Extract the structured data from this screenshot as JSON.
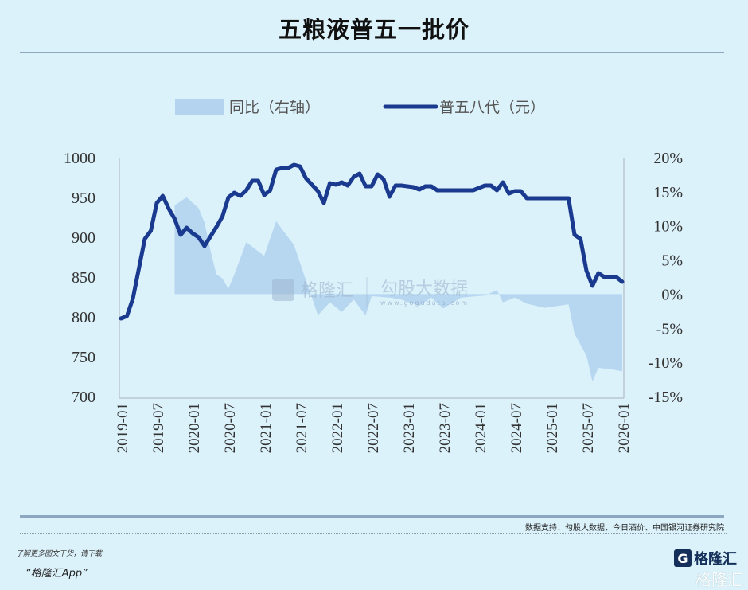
{
  "header": {
    "title": "五粮液普五一批价"
  },
  "footer": {
    "source": "数据支持：勾股大数据、今日酒价、中国银河证券研究院",
    "promo_line1": "了解更多图文干货，请下载",
    "promo_line2": "“格隆汇App”",
    "logo_text": "格隆汇",
    "logo_letter": "G"
  },
  "watermark": {
    "brand1": "格隆汇",
    "brand2": "勾股大数据",
    "url": "www.gogudata.com"
  },
  "colors": {
    "line": "#1a3a8f",
    "area": "#b3d3ee",
    "background": "#dcf2fb"
  },
  "chart_data": {
    "type": "line+area",
    "title": "五粮液普五一批价",
    "legend_position": "top",
    "grid": false,
    "x_ticks": [
      "2019-01",
      "2019-07",
      "2020-01",
      "2020-07",
      "2021-01",
      "2021-07",
      "2022-01",
      "2022-07",
      "2023-01",
      "2023-07",
      "2024-01",
      "2024-07",
      "2025-01",
      "2025-07",
      "2026-01"
    ],
    "y_left": {
      "range": [
        700,
        1000
      ],
      "ticks": [
        700,
        750,
        800,
        850,
        900,
        950,
        1000
      ]
    },
    "y_right": {
      "range": [
        -15,
        20
      ],
      "ticks": [
        "-15%",
        "-10%",
        "-5%",
        "0%",
        "5%",
        "10%",
        "15%",
        "20%"
      ],
      "tick_values": [
        -15,
        -10,
        -5,
        0,
        5,
        10,
        15,
        20
      ]
    },
    "series": [
      {
        "name": "同比（右轴）",
        "type": "area",
        "axis": "right",
        "unit": "%",
        "points": [
          [
            "2019-10",
            0
          ],
          [
            "2019-10",
            13
          ],
          [
            "2019-12",
            14.2
          ],
          [
            "2020-02",
            12.6
          ],
          [
            "2020-03",
            10.5
          ],
          [
            "2020-04",
            6.4
          ],
          [
            "2020-05",
            2.9
          ],
          [
            "2020-06",
            2.3
          ],
          [
            "2020-07",
            0.8
          ],
          [
            "2020-08",
            2.9
          ],
          [
            "2020-10",
            7.6
          ],
          [
            "2021-01",
            5.6
          ],
          [
            "2021-03",
            10.7
          ],
          [
            "2021-04",
            9.5
          ],
          [
            "2021-06",
            7.2
          ],
          [
            "2021-08",
            2.0
          ],
          [
            "2021-09",
            -0.5
          ],
          [
            "2021-10",
            -3.1
          ],
          [
            "2021-12",
            -1.2
          ],
          [
            "2022-02",
            -2.6
          ],
          [
            "2022-04",
            -0.8
          ],
          [
            "2022-06",
            -3.1
          ],
          [
            "2022-07",
            -0.3
          ],
          [
            "2022-10",
            -0.5
          ],
          [
            "2022-12",
            -0.8
          ],
          [
            "2023-03",
            -1.7
          ],
          [
            "2023-05",
            -0.5
          ],
          [
            "2023-07",
            -2.1
          ],
          [
            "2023-10",
            -0.5
          ],
          [
            "2024-02",
            -0.2
          ],
          [
            "2024-04",
            0.6
          ],
          [
            "2024-05",
            -1.2
          ],
          [
            "2024-07",
            -0.5
          ],
          [
            "2024-09",
            -1.4
          ],
          [
            "2024-12",
            -2.0
          ],
          [
            "2025-04",
            -1.5
          ],
          [
            "2025-05",
            -5.8
          ],
          [
            "2025-07",
            -9.0
          ],
          [
            "2025-08",
            -12.8
          ],
          [
            "2025-09",
            -10.8
          ],
          [
            "2025-11",
            -11.0
          ],
          [
            "2026-01",
            -11.3
          ]
        ]
      },
      {
        "name": "普五八代（元）",
        "type": "line",
        "axis": "left",
        "unit": "元",
        "points": [
          [
            "2019-01",
            798
          ],
          [
            "2019-02",
            801
          ],
          [
            "2019-03",
            823
          ],
          [
            "2019-05",
            898
          ],
          [
            "2019-06",
            908
          ],
          [
            "2019-07",
            943
          ],
          [
            "2019-08",
            952
          ],
          [
            "2019-09",
            936
          ],
          [
            "2019-10",
            923
          ],
          [
            "2019-11",
            903
          ],
          [
            "2019-12",
            912
          ],
          [
            "2020-01",
            905
          ],
          [
            "2020-02",
            900
          ],
          [
            "2020-03",
            889
          ],
          [
            "2020-05",
            913
          ],
          [
            "2020-06",
            926
          ],
          [
            "2020-07",
            950
          ],
          [
            "2020-08",
            956
          ],
          [
            "2020-09",
            952
          ],
          [
            "2020-10",
            959
          ],
          [
            "2020-11",
            971
          ],
          [
            "2020-12",
            971
          ],
          [
            "2021-01",
            953
          ],
          [
            "2021-02",
            959
          ],
          [
            "2021-03",
            985
          ],
          [
            "2021-04",
            987
          ],
          [
            "2021-05",
            987
          ],
          [
            "2021-06",
            991
          ],
          [
            "2021-07",
            989
          ],
          [
            "2021-08",
            974
          ],
          [
            "2021-09",
            966
          ],
          [
            "2021-10",
            958
          ],
          [
            "2021-11",
            943
          ],
          [
            "2021-12",
            968
          ],
          [
            "2022-01",
            966
          ],
          [
            "2022-02",
            969
          ],
          [
            "2022-03",
            965
          ],
          [
            "2022-04",
            976
          ],
          [
            "2022-05",
            980
          ],
          [
            "2022-06",
            964
          ],
          [
            "2022-07",
            964
          ],
          [
            "2022-08",
            979
          ],
          [
            "2022-09",
            973
          ],
          [
            "2022-10",
            951
          ],
          [
            "2022-11",
            965
          ],
          [
            "2022-12",
            965
          ],
          [
            "2023-02",
            963
          ],
          [
            "2023-03",
            960
          ],
          [
            "2023-04",
            964
          ],
          [
            "2023-05",
            964
          ],
          [
            "2023-06",
            959
          ],
          [
            "2023-12",
            959
          ],
          [
            "2024-02",
            965
          ],
          [
            "2024-03",
            965
          ],
          [
            "2024-04",
            959
          ],
          [
            "2024-05",
            969
          ],
          [
            "2024-06",
            955
          ],
          [
            "2024-07",
            958
          ],
          [
            "2024-08",
            958
          ],
          [
            "2024-09",
            949
          ],
          [
            "2025-04",
            949
          ],
          [
            "2025-05",
            903
          ],
          [
            "2025-06",
            898
          ],
          [
            "2025-07",
            858
          ],
          [
            "2025-08",
            839
          ],
          [
            "2025-09",
            855
          ],
          [
            "2025-10",
            850
          ],
          [
            "2025-12",
            850
          ],
          [
            "2026-01",
            844
          ]
        ]
      }
    ]
  }
}
